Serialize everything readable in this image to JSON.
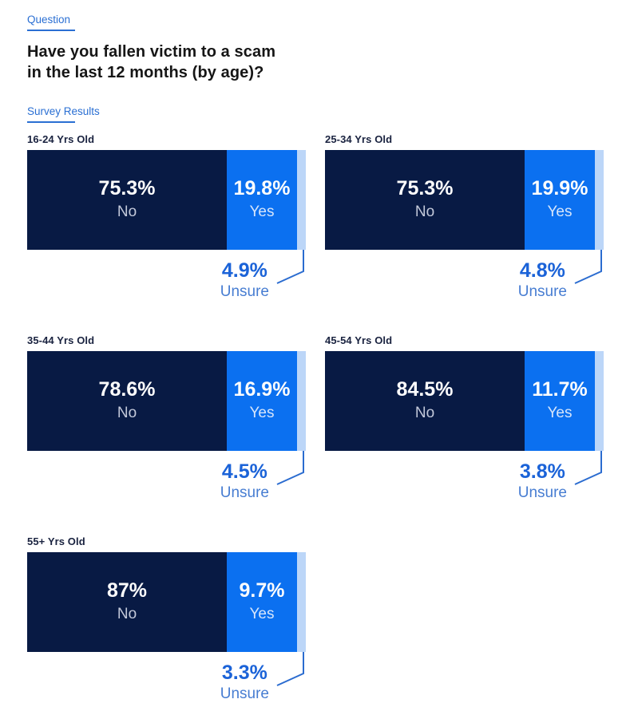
{
  "header": {
    "question_tab_label": "Question",
    "title_lines": [
      "Have you fallen victim to a scam",
      "in the last 12 months (by age)?"
    ],
    "results_tab_label": "Survey Results"
  },
  "chart_data": {
    "type": "bar",
    "variant": "horizontal-stacked-100-percent",
    "title": "Have you fallen victim to a scam in the last 12 months (by age)?",
    "categories": [
      "No",
      "Yes",
      "Unsure"
    ],
    "colors": {
      "no": "#081a44",
      "yes": "#0b70f0",
      "unsure": "#bcd6f8",
      "accent_link": "#2a6fd3",
      "callout_text": "#1b63d8"
    },
    "legend_position": "inline-labels",
    "xlim": [
      0,
      100
    ],
    "groups": [
      {
        "label": "16-24 Yrs Old",
        "no": 75.3,
        "yes": 19.8,
        "unsure": 4.9,
        "no_display": "75.3%",
        "yes_display": "19.8%",
        "unsure_display": "4.9%"
      },
      {
        "label": "25-34 Yrs Old",
        "no": 75.3,
        "yes": 19.9,
        "unsure": 4.8,
        "no_display": "75.3%",
        "yes_display": "19.9%",
        "unsure_display": "4.8%"
      },
      {
        "label": "35-44 Yrs Old",
        "no": 78.6,
        "yes": 16.9,
        "unsure": 4.5,
        "no_display": "78.6%",
        "yes_display": "16.9%",
        "unsure_display": "4.5%"
      },
      {
        "label": "45-54 Yrs Old",
        "no": 84.5,
        "yes": 11.7,
        "unsure": 3.8,
        "no_display": "84.5%",
        "yes_display": "11.7%",
        "unsure_display": "3.8%"
      },
      {
        "label": "55+ Yrs Old",
        "no": 87.0,
        "yes": 9.7,
        "unsure": 3.3,
        "no_display": "87%",
        "yes_display": "9.7%",
        "unsure_display": "3.3%"
      }
    ]
  }
}
